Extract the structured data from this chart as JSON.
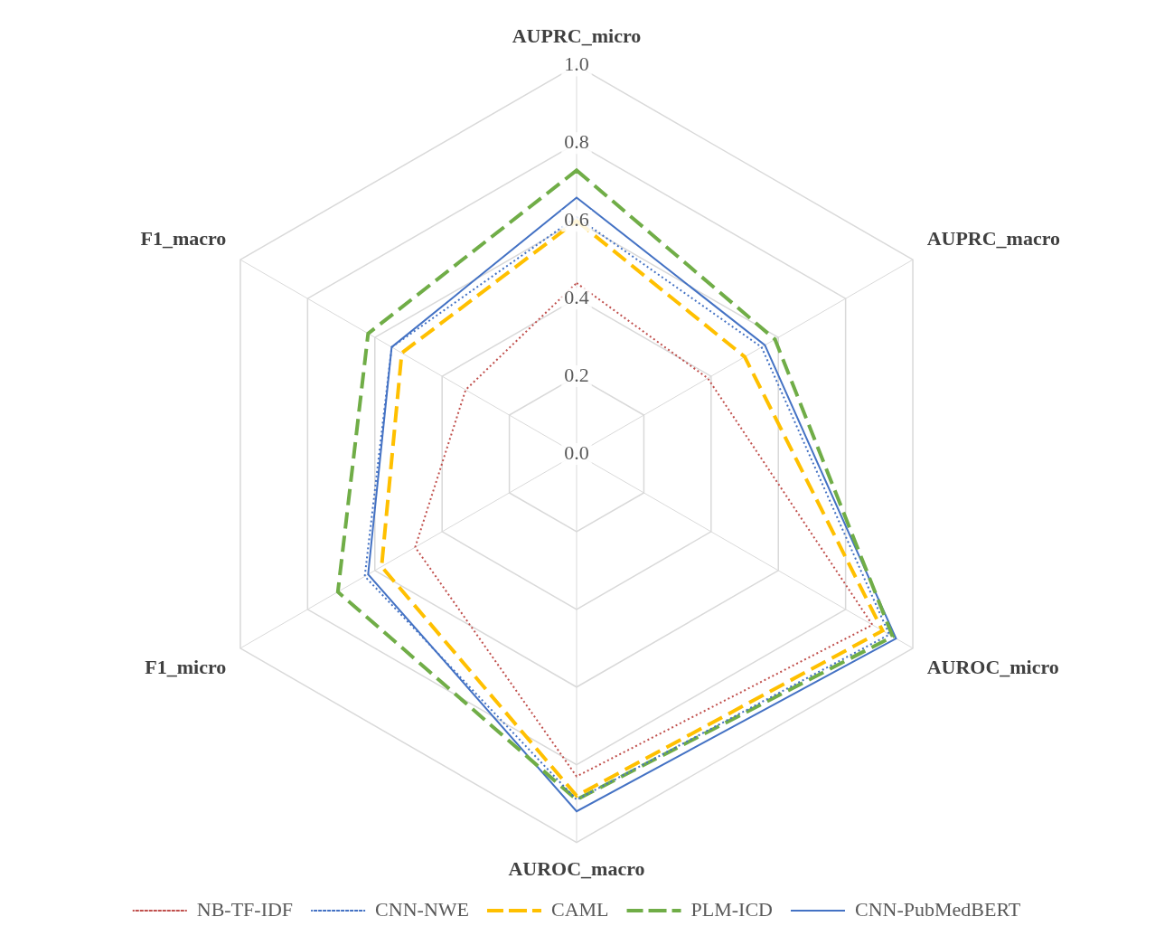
{
  "chart_data": {
    "type": "radar",
    "categories": [
      "AUPRC_micro",
      "AUPRC_macro",
      "AUROC_micro",
      "AUROC_macro",
      "F1_micro",
      "F1_macro"
    ],
    "ylim": [
      0,
      1
    ],
    "yticks": [
      {
        "value": 0,
        "label": "0.0"
      },
      0.2,
      0.4,
      0.6,
      0.8,
      {
        "value": 1,
        "label": "1.0"
      }
    ],
    "grid": true,
    "legend": "bottom",
    "marker": "none",
    "series": [
      {
        "name": "NB-TF-IDF",
        "color": "#c0504d",
        "line_style": "dotted",
        "values": [
          0.44,
          0.39,
          0.88,
          0.83,
          0.48,
          0.33
        ]
      },
      {
        "name": "CNN-NWE",
        "color": "#4472c4",
        "line_style": "dotted",
        "values": [
          0.61,
          0.55,
          0.93,
          0.89,
          0.63,
          0.55
        ]
      },
      {
        "name": "CAML",
        "color": "#ffc000",
        "line_style": "dashed",
        "values": [
          0.6,
          0.5,
          0.91,
          0.88,
          0.58,
          0.52
        ]
      },
      {
        "name": "PLM-ICD",
        "color": "#70ad47",
        "line_style": "dashed",
        "values": [
          0.73,
          0.59,
          0.94,
          0.89,
          0.71,
          0.62
        ]
      },
      {
        "name": "CNN-PubMedBERT",
        "color": "#4472c4",
        "line_style": "solid",
        "values": [
          0.66,
          0.56,
          0.95,
          0.92,
          0.62,
          0.55
        ]
      }
    ]
  }
}
